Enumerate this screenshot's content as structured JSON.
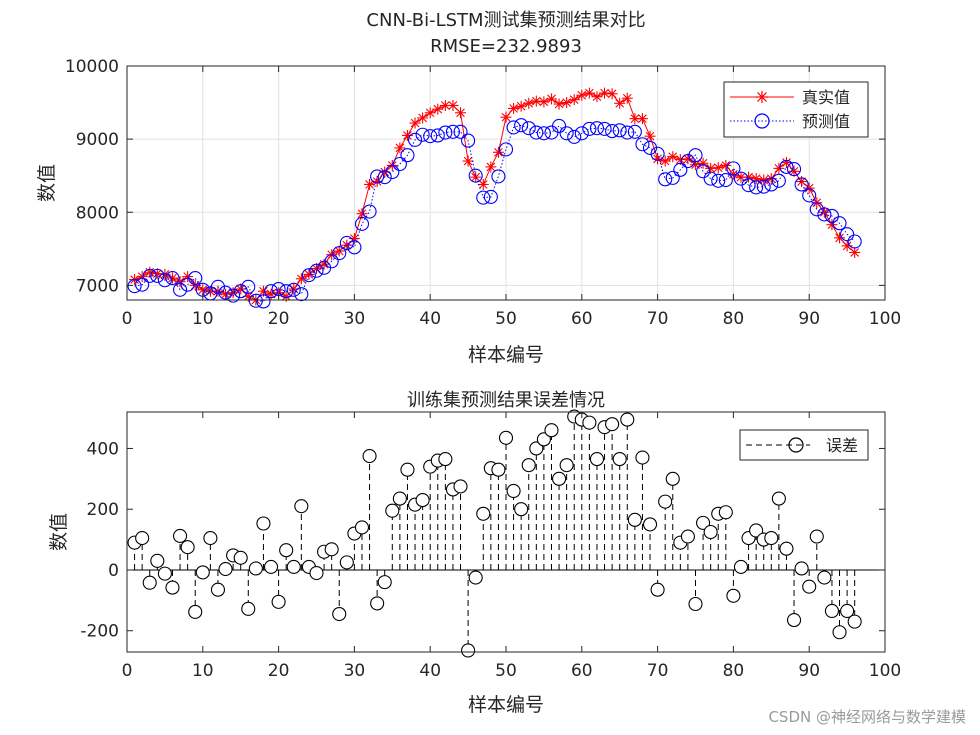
{
  "watermark": "CSDN @神经网络与数学建模",
  "chart_data": [
    {
      "type": "line",
      "title": "CNN-Bi-LSTM测试集预测结果对比",
      "subtitle": "RMSE=232.9893",
      "xlabel": "样本编号",
      "ylabel": "数值",
      "xlim": [
        0,
        100
      ],
      "ylim": [
        6800,
        10000
      ],
      "xticks": [
        0,
        10,
        20,
        30,
        40,
        50,
        60,
        70,
        80,
        90,
        100
      ],
      "yticks": [
        7000,
        8000,
        9000,
        10000
      ],
      "grid": true,
      "legend_position": "top-right",
      "x": [
        1,
        2,
        3,
        4,
        5,
        6,
        7,
        8,
        9,
        10,
        11,
        12,
        13,
        14,
        15,
        16,
        17,
        18,
        19,
        20,
        21,
        22,
        23,
        24,
        25,
        26,
        27,
        28,
        29,
        30,
        31,
        32,
        33,
        34,
        35,
        36,
        37,
        38,
        39,
        40,
        41,
        42,
        43,
        44,
        45,
        46,
        47,
        48,
        49,
        50,
        51,
        52,
        53,
        54,
        55,
        56,
        57,
        58,
        59,
        60,
        61,
        62,
        63,
        64,
        65,
        66,
        67,
        68,
        69,
        70,
        71,
        72,
        73,
        74,
        75,
        76,
        77,
        78,
        79,
        80,
        81,
        82,
        83,
        84,
        85,
        86,
        87,
        88,
        89,
        90,
        91,
        92,
        93,
        94,
        95,
        96
      ],
      "series": [
        {
          "name": "真实值",
          "color": "#ff0000",
          "marker": "asterisk",
          "line": "solid",
          "values": [
            7080,
            7120,
            7180,
            7160,
            7150,
            7100,
            7050,
            7120,
            7000,
            6940,
            6920,
            6920,
            6880,
            6900,
            6950,
            6850,
            6800,
            6920,
            6880,
            6900,
            6850,
            6950,
            7090,
            7150,
            7230,
            7290,
            7420,
            7470,
            7550,
            7640,
            7980,
            8380,
            8420,
            8550,
            8640,
            8880,
            9050,
            9220,
            9290,
            9360,
            9410,
            9460,
            9460,
            9360,
            8700,
            8480,
            8380,
            8620,
            8820,
            9300,
            9420,
            9450,
            9490,
            9520,
            9510,
            9550,
            9480,
            9500,
            9540,
            9600,
            9630,
            9580,
            9630,
            9620,
            9490,
            9560,
            9280,
            9280,
            9040,
            8730,
            8700,
            8760,
            8720,
            8730,
            8650,
            8670,
            8600,
            8610,
            8640,
            8520,
            8480,
            8480,
            8460,
            8440,
            8460,
            8600,
            8680,
            8560,
            8420,
            8330,
            8130,
            8000,
            7830,
            7650,
            7540,
            7450
          ]
        },
        {
          "name": "预测值",
          "color": "#0000ff",
          "marker": "circle",
          "line": "dotted",
          "values": [
            6990,
            7010,
            7130,
            7130,
            7070,
            7100,
            6940,
            7010,
            7100,
            6940,
            6890,
            6980,
            6900,
            6860,
            6920,
            6980,
            6790,
            6780,
            6920,
            6950,
            6920,
            6940,
            6880,
            7140,
            7200,
            7240,
            7330,
            7440,
            7580,
            7520,
            7840,
            8010,
            8490,
            8480,
            8550,
            8660,
            8780,
            8990,
            9060,
            9040,
            9050,
            9090,
            9100,
            9100,
            8980,
            8500,
            8200,
            8210,
            8490,
            8860,
            9160,
            9190,
            9150,
            9090,
            9080,
            9090,
            9180,
            9080,
            9030,
            9080,
            9140,
            9150,
            9140,
            9110,
            9120,
            9090,
            9100,
            8930,
            8880,
            8800,
            8450,
            8470,
            8580,
            8700,
            8780,
            8560,
            8460,
            8430,
            8440,
            8600,
            8460,
            8370,
            8340,
            8350,
            8380,
            8430,
            8620,
            8590,
            8380,
            8230,
            8040,
            7970,
            7950,
            7850,
            7700,
            7600
          ]
        }
      ]
    },
    {
      "type": "stem",
      "title": "训练集预测结果误差情况",
      "xlabel": "样本编号",
      "ylabel": "数值",
      "xlim": [
        0,
        100
      ],
      "ylim": [
        -270,
        520
      ],
      "xticks": [
        0,
        10,
        20,
        30,
        40,
        50,
        60,
        70,
        80,
        90,
        100
      ],
      "yticks": [
        -200,
        0,
        200,
        400
      ],
      "grid": false,
      "legend_position": "top-right",
      "x": [
        1,
        2,
        3,
        4,
        5,
        6,
        7,
        8,
        9,
        10,
        11,
        12,
        13,
        14,
        15,
        16,
        17,
        18,
        19,
        20,
        21,
        22,
        23,
        24,
        25,
        26,
        27,
        28,
        29,
        30,
        31,
        32,
        33,
        34,
        35,
        36,
        37,
        38,
        39,
        40,
        41,
        42,
        43,
        44,
        45,
        46,
        47,
        48,
        49,
        50,
        51,
        52,
        53,
        54,
        55,
        56,
        57,
        58,
        59,
        60,
        61,
        62,
        63,
        64,
        65,
        66,
        67,
        68,
        69,
        70,
        71,
        72,
        73,
        74,
        75,
        76,
        77,
        78,
        79,
        80,
        81,
        82,
        83,
        84,
        85,
        86,
        87,
        88,
        89,
        90,
        91,
        92,
        93,
        94,
        95,
        96
      ],
      "series": [
        {
          "name": "误差",
          "color": "#000000",
          "marker": "circle",
          "line": "dashed",
          "values": [
            90,
            105,
            -42,
            30,
            -12,
            -58,
            112,
            75,
            -138,
            -8,
            105,
            -65,
            3,
            48,
            40,
            -128,
            5,
            153,
            10,
            -105,
            65,
            10,
            210,
            10,
            -10,
            60,
            68,
            -145,
            25,
            120,
            140,
            375,
            -110,
            -40,
            195,
            235,
            330,
            215,
            230,
            340,
            360,
            365,
            265,
            275,
            -265,
            -25,
            185,
            335,
            330,
            435,
            260,
            200,
            345,
            400,
            430,
            460,
            300,
            345,
            505,
            495,
            485,
            365,
            470,
            480,
            365,
            495,
            165,
            370,
            150,
            -65,
            225,
            300,
            90,
            110,
            -112,
            155,
            125,
            185,
            190,
            -85,
            10,
            105,
            130,
            100,
            105,
            235,
            70,
            -165,
            5,
            -55,
            110,
            -25,
            -135,
            -205,
            -135,
            -170
          ]
        }
      ]
    }
  ]
}
